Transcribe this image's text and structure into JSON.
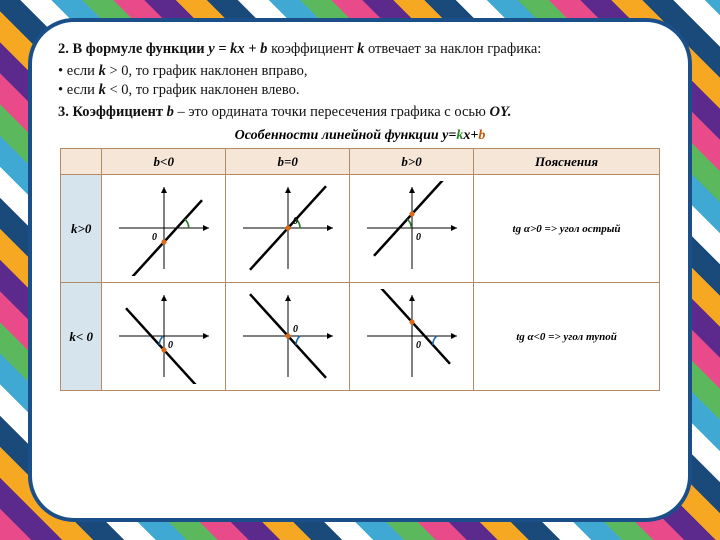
{
  "text": {
    "p1_a": "2. В формуле  функции  ",
    "p1_b": "y  =  kx  +  b",
    "p1_c": "  коэффициент ",
    "p1_d": "k",
    "p1_e": "   отвечает за наклон графика:",
    "li1_a": "если ",
    "li1_b": "k",
    "li1_c": "  > 0,  то график  наклонен вправо,",
    "li2_a": "если ",
    "li2_b": "k",
    "li2_c": "  < 0,  то график наклонен влево.",
    "p3_a": "3.  Коэффициент ",
    "p3_b": "b",
    "p3_c": " – это ордината точки пересечения графика с осью ",
    "p3_d": "OY.",
    "chart_title_a": "Особенности линейной функции y=",
    "chart_title_k": "k",
    "chart_title_xplus": "x+",
    "chart_title_b": "b"
  },
  "table": {
    "col_headers": [
      "b<0",
      "b=0",
      "b>0",
      "Пояснения"
    ],
    "row_headers": [
      "k>0",
      "k< 0"
    ],
    "explanations": [
      "tg α>0 => угол острый",
      "tg α<0 => угол тупой"
    ],
    "colors": {
      "axis": "#000000",
      "line": "#000000",
      "angle_pos": "#2a7a2a",
      "angle_neg": "#1e6aa8",
      "dot": "#d86a1a",
      "th_bg": "#f6e6d8",
      "rowh_bg": "#d6e4ee",
      "border": "#b58b65"
    },
    "cells": [
      [
        {
          "slope": "pos",
          "b": "neg"
        },
        {
          "slope": "pos",
          "b": "zero"
        },
        {
          "slope": "pos",
          "b": "pos"
        }
      ],
      [
        {
          "slope": "neg",
          "b": "neg"
        },
        {
          "slope": "neg",
          "b": "zero"
        },
        {
          "slope": "neg",
          "b": "pos"
        }
      ]
    ]
  }
}
